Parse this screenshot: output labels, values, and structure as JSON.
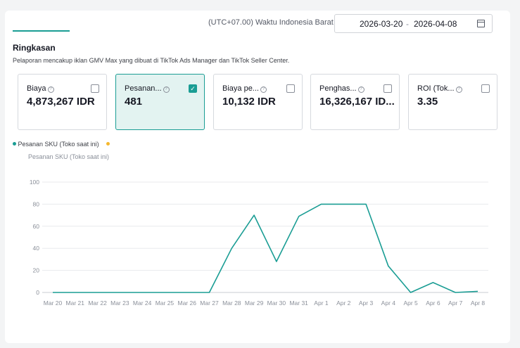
{
  "header": {
    "timezone": "(UTC+07.00) Waktu Indonesia Barat",
    "date_start": "2026-03-20",
    "date_sep": "-",
    "date_end": "2026-04-08"
  },
  "summary": {
    "title": "Ringkasan",
    "subtitle": "Pelaporan mencakup iklan GMV Max yang dibuat di TikTok Ads Manager dan TikTok Seller Center."
  },
  "metrics": [
    {
      "label": "Biaya",
      "value": "4,873,267 IDR",
      "checked": false
    },
    {
      "label": "Pesanan...",
      "value": "481",
      "checked": true
    },
    {
      "label": "Biaya pe...",
      "value": "10,132 IDR",
      "checked": false
    },
    {
      "label": "Penghas...",
      "value": "16,326,167 ID...",
      "checked": false
    },
    {
      "label": "ROI (Tok...",
      "value": "3.35",
      "checked": false
    }
  ],
  "legend": {
    "series_label": "Pesanan SKU (Toko saat ini)",
    "series_color": "#1a9d94",
    "second_dot_color": "#f5b82e"
  },
  "chart_data": {
    "type": "line",
    "ylabel": "Pesanan SKU (Toko saat ini)",
    "ylim": [
      0,
      100
    ],
    "yticks": [
      "100",
      "80",
      "60",
      "40",
      "20",
      "0"
    ],
    "categories": [
      "Mar 20",
      "Mar 21",
      "Mar 22",
      "Mar 23",
      "Mar 24",
      "Mar 25",
      "Mar 26",
      "Mar 27",
      "Mar 28",
      "Mar 29",
      "Mar 30",
      "Mar 31",
      "Apr 1",
      "Apr 2",
      "Apr 3",
      "Apr 4",
      "Apr 5",
      "Apr 6",
      "Apr 7",
      "Apr 8"
    ],
    "series": [
      {
        "name": "Pesanan SKU (Toko saat ini)",
        "values": [
          0,
          0,
          0,
          0,
          0,
          0,
          0,
          0,
          40,
          70,
          28,
          69,
          80,
          80,
          80,
          24,
          0,
          9,
          0,
          1
        ]
      }
    ],
    "grid": true,
    "legend": "top-left"
  }
}
